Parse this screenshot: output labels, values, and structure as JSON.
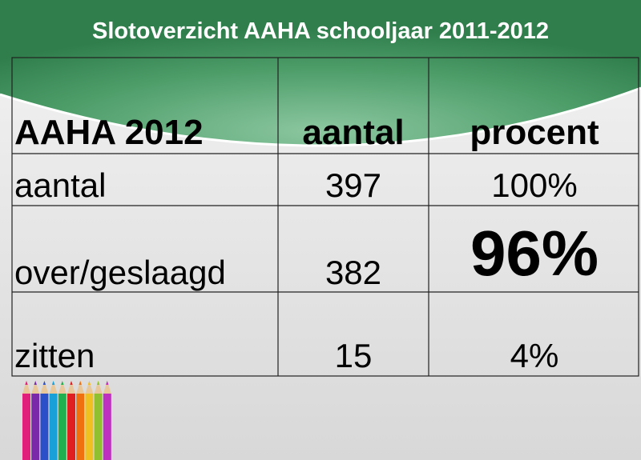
{
  "header": {
    "title": "Slotoverzicht  AAHA schooljaar 2011-2012"
  },
  "table": {
    "header": [
      "AAHA 2012",
      "aantal",
      "procent"
    ],
    "rows": [
      [
        "aantal",
        "397",
        "100%"
      ],
      [
        "over/geslaagd",
        "382",
        "96%"
      ],
      [
        "zitten",
        "15",
        "4%"
      ]
    ]
  }
}
